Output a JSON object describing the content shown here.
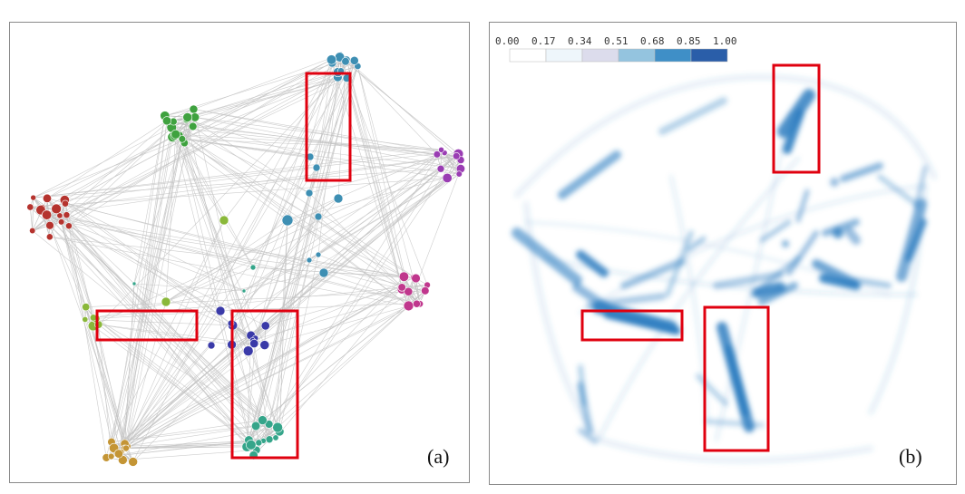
{
  "figure": {
    "panels": [
      {
        "id": "a",
        "label": "(a)"
      },
      {
        "id": "b",
        "label": "(b)"
      }
    ]
  },
  "colorbar": {
    "ticks": [
      "0.00",
      "0.17",
      "0.34",
      "0.51",
      "0.68",
      "0.85",
      "1.00"
    ],
    "bins": [
      "#ffffff",
      "#eef6fb",
      "#dcdcec",
      "#94c4df",
      "#3f8fc7",
      "#2a5ea9"
    ]
  },
  "colors": {
    "edge": "#c4c4c4",
    "highlight": "#e0000f",
    "density": "#2f7ec1",
    "clusters": {
      "blue": "#3e8fb3",
      "green": "#3fa23f",
      "red": "#b5332e",
      "purple": "#9a3db3",
      "magenta": "#c0378d",
      "navy": "#3a3aa8",
      "lime": "#8ab83a",
      "teal": "#35a58a",
      "orange": "#c49535"
    }
  }
}
